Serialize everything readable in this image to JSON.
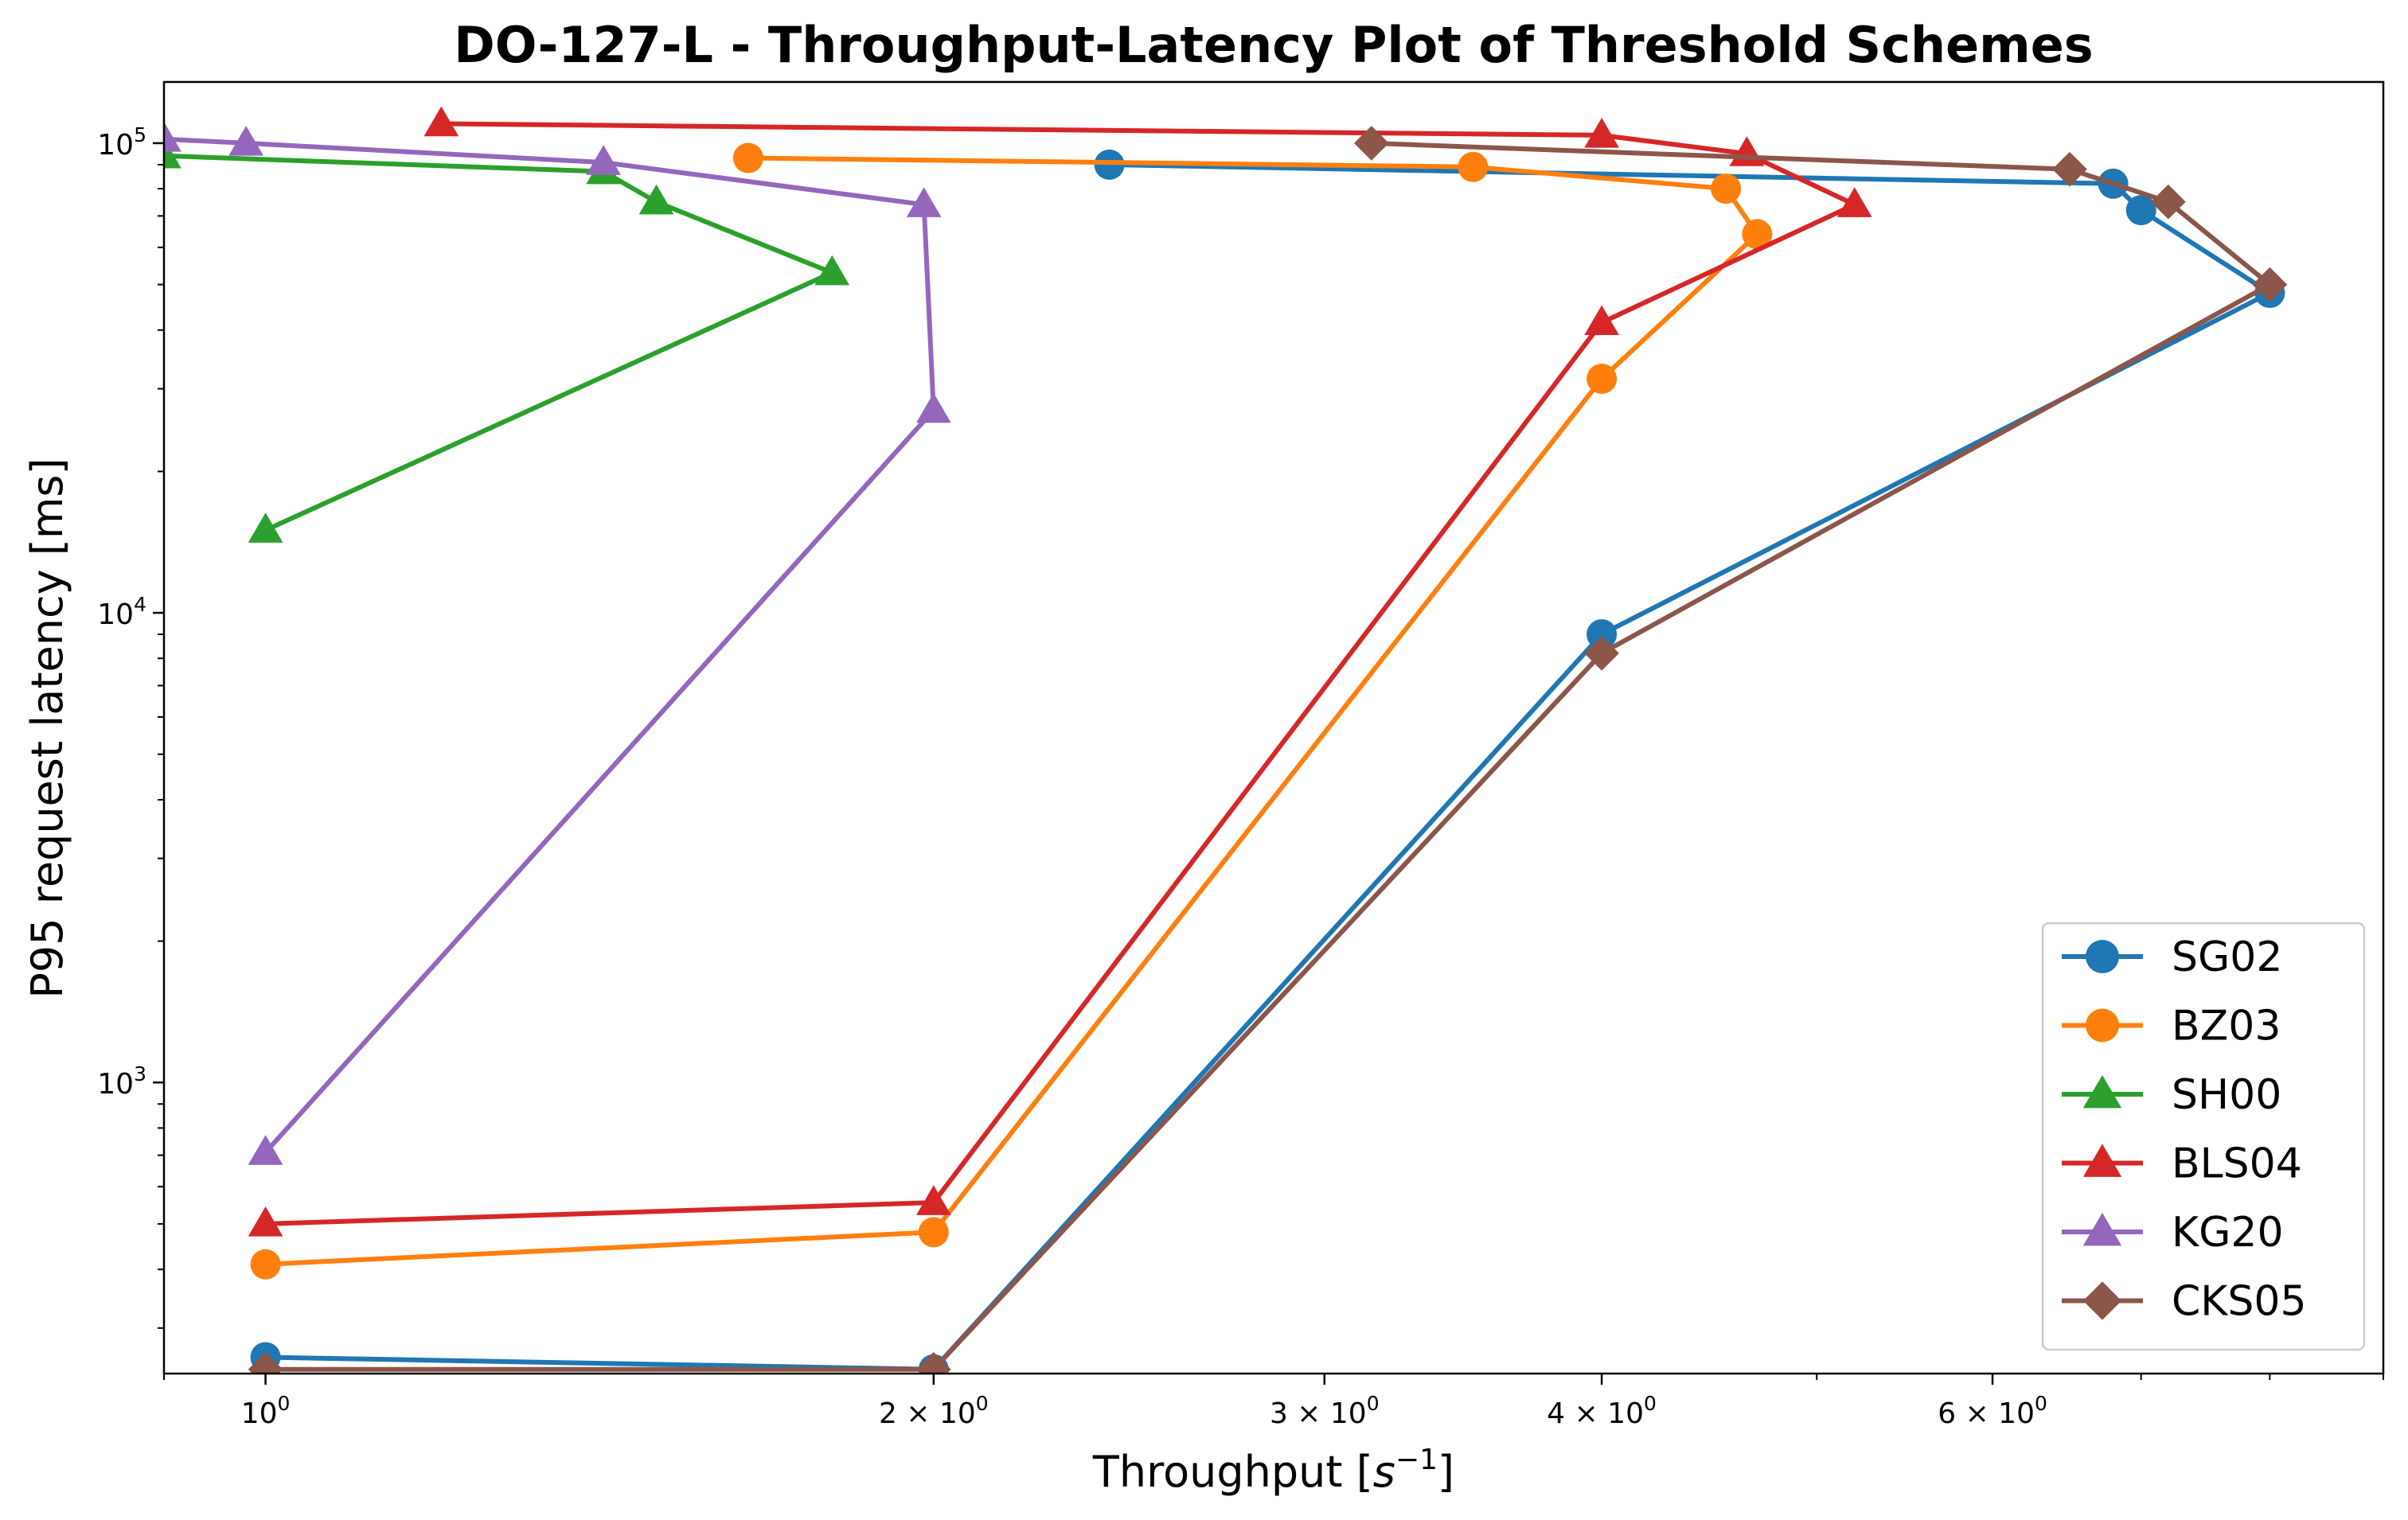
{
  "chart_data": {
    "type": "line",
    "title": "DO-127-L - Throughput-Latency Plot of Threshold Schemes",
    "xlabel": "Throughput [s⁻¹]",
    "ylabel": "P95 request latency [ms]",
    "xscale": "log",
    "yscale": "log",
    "xlim": [
      0.9,
      9.0
    ],
    "ylim": [
      240,
      135000
    ],
    "x_ticks": [
      {
        "value": 1,
        "label": "10",
        "exp": "0"
      },
      {
        "value": 2,
        "label": "2 × 10",
        "exp": "0"
      },
      {
        "value": 3,
        "label": "3 × 10",
        "exp": "0"
      },
      {
        "value": 4,
        "label": "4 × 10",
        "exp": "0"
      },
      {
        "value": 6,
        "label": "6 × 10",
        "exp": "0"
      }
    ],
    "y_ticks": [
      {
        "value": 1000,
        "label": "10",
        "exp": "3"
      },
      {
        "value": 10000,
        "label": "10",
        "exp": "4"
      },
      {
        "value": 100000,
        "label": "10",
        "exp": "5"
      }
    ],
    "grid": false,
    "legend_position": "lower-right",
    "series": [
      {
        "name": "SG02",
        "color": "#1f77b4",
        "marker": "circle",
        "points": [
          [
            1.0,
            260
          ],
          [
            2.0,
            245
          ],
          [
            4.0,
            9000
          ],
          [
            8.0,
            48000
          ],
          [
            7.0,
            72000
          ],
          [
            6.8,
            82000
          ],
          [
            2.4,
            90000
          ]
        ]
      },
      {
        "name": "BZ03",
        "color": "#ff7f0e",
        "marker": "circle",
        "points": [
          [
            1.0,
            410
          ],
          [
            2.0,
            480
          ],
          [
            4.0,
            31500
          ],
          [
            4.7,
            64000
          ],
          [
            4.55,
            80000
          ],
          [
            3.5,
            89000
          ],
          [
            1.65,
            93000
          ]
        ]
      },
      {
        "name": "SH00",
        "color": "#2ca02c",
        "marker": "triangle",
        "points": [
          [
            1.0,
            15000
          ],
          [
            1.8,
            53000
          ],
          [
            1.5,
            75000
          ],
          [
            1.42,
            87000
          ],
          [
            0.9,
            94000
          ]
        ]
      },
      {
        "name": "BLS04",
        "color": "#d62728",
        "marker": "triangle",
        "points": [
          [
            1.0,
            500
          ],
          [
            2.0,
            555
          ],
          [
            4.0,
            41500
          ],
          [
            5.2,
            74000
          ],
          [
            4.65,
            95000
          ],
          [
            4.0,
            104000
          ],
          [
            1.2,
            110000
          ]
        ]
      },
      {
        "name": "KG20",
        "color": "#9467bd",
        "marker": "triangle",
        "points": [
          [
            1.0,
            710
          ],
          [
            2.0,
            27000
          ],
          [
            1.98,
            74000
          ],
          [
            1.42,
            91000
          ],
          [
            0.98,
            100000
          ],
          [
            0.9,
            102000
          ]
        ]
      },
      {
        "name": "CKS05",
        "color": "#8c564b",
        "marker": "diamond",
        "points": [
          [
            1.0,
            245
          ],
          [
            2.0,
            245
          ],
          [
            4.0,
            8200
          ],
          [
            8.0,
            50000
          ],
          [
            7.2,
            75000
          ],
          [
            6.5,
            88000
          ],
          [
            3.15,
            100000
          ]
        ]
      }
    ]
  }
}
